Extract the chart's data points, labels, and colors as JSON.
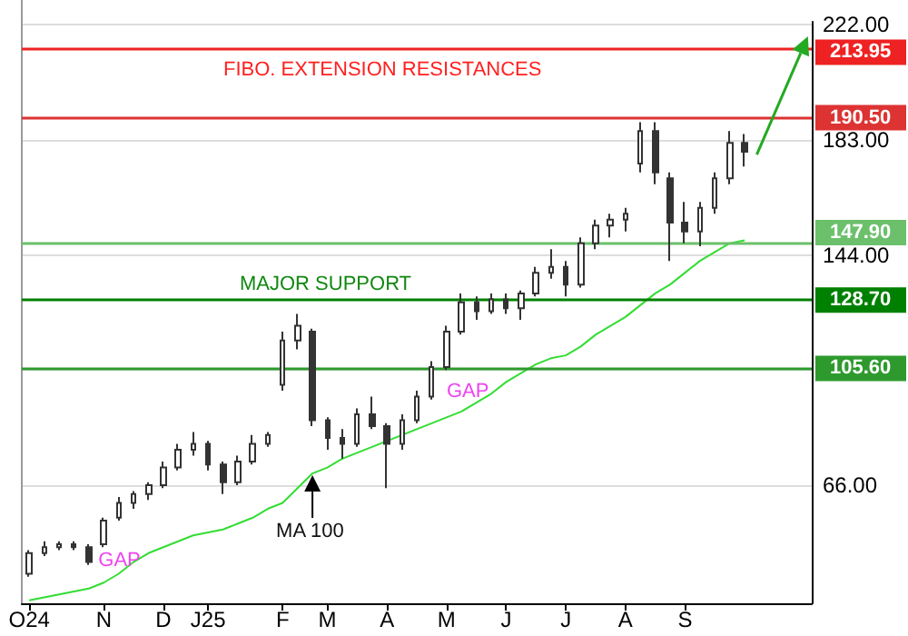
{
  "chart_data": {
    "type": "candlestick",
    "categories": [
      "O24",
      null,
      null,
      null,
      null,
      "N",
      null,
      null,
      null,
      "D",
      null,
      null,
      "J25",
      null,
      null,
      null,
      null,
      "F",
      null,
      null,
      "M",
      null,
      null,
      null,
      "A",
      null,
      null,
      null,
      "M",
      null,
      null,
      null,
      "J",
      null,
      null,
      null,
      "J",
      null,
      null,
      null,
      "A",
      null,
      null,
      null,
      "S",
      null,
      null,
      null,
      null,
      null,
      null,
      null,
      null
    ],
    "series": [
      {
        "color": "#333333",
        "ohlc": [
          [
            36,
            44,
            35,
            43
          ],
          [
            43,
            47,
            42,
            45
          ],
          [
            45,
            47,
            44,
            46
          ],
          [
            46,
            47,
            44,
            45
          ],
          [
            45,
            46,
            39,
            40
          ],
          [
            46,
            55,
            45,
            54
          ],
          [
            55,
            62,
            54,
            60
          ],
          [
            60,
            64,
            58,
            63
          ],
          [
            63,
            67,
            61,
            66
          ],
          [
            66,
            74,
            65,
            72
          ],
          [
            72,
            80,
            71,
            78
          ],
          [
            78,
            84,
            76,
            80
          ],
          [
            80,
            81,
            71,
            73
          ],
          [
            73,
            74,
            63,
            67
          ],
          [
            67,
            76,
            66,
            74
          ],
          [
            74,
            83,
            73,
            80
          ],
          [
            80,
            84,
            79,
            83
          ],
          [
            100,
            118,
            98,
            115
          ],
          [
            115,
            124,
            112,
            120
          ],
          [
            118,
            119,
            86,
            88
          ],
          [
            88,
            89,
            78,
            82
          ],
          [
            82,
            85,
            75,
            80
          ],
          [
            80,
            92,
            79,
            90
          ],
          [
            90,
            96,
            85,
            86
          ],
          [
            86,
            87,
            65,
            80
          ],
          [
            80,
            90,
            78,
            88
          ],
          [
            88,
            98,
            87,
            96
          ],
          [
            96,
            108,
            95,
            106
          ],
          [
            106,
            120,
            105,
            118
          ],
          [
            118,
            131,
            117,
            128
          ],
          [
            128,
            130,
            122,
            125
          ],
          [
            125,
            131,
            124,
            129
          ],
          [
            129,
            131,
            124,
            126
          ],
          [
            126,
            132,
            122,
            131
          ],
          [
            131,
            140,
            130,
            138
          ],
          [
            138,
            146,
            136,
            140
          ],
          [
            140,
            142,
            130,
            134
          ],
          [
            134,
            150,
            133,
            148
          ],
          [
            148,
            156,
            146,
            154
          ],
          [
            154,
            158,
            150,
            156
          ],
          [
            156,
            160,
            152,
            158
          ],
          [
            175,
            189,
            172,
            186
          ],
          [
            186,
            189,
            168,
            172
          ],
          [
            170,
            172,
            142,
            155
          ],
          [
            155,
            162,
            148,
            152
          ],
          [
            152,
            162,
            147,
            160
          ],
          [
            160,
            172,
            158,
            170
          ],
          [
            170,
            186,
            168,
            182
          ],
          [
            182,
            185,
            174,
            179
          ],
          null,
          null,
          null,
          null
        ]
      },
      {
        "type": "line",
        "color": "#33dd33",
        "values": [
          27,
          28,
          29,
          30,
          31,
          33,
          36,
          40,
          43,
          45,
          47,
          49,
          50,
          51,
          53,
          55,
          58,
          60,
          65,
          70,
          72,
          75,
          77,
          79,
          81,
          83,
          85,
          87,
          89,
          91,
          94,
          97,
          101,
          104,
          107,
          109,
          110,
          113,
          117,
          120,
          123,
          127,
          131,
          134,
          138,
          142,
          145,
          148,
          149,
          null,
          null,
          null,
          null
        ]
      }
    ],
    "ylim": [
      26,
      223
    ],
    "yticks": [
      {
        "value": 66,
        "label": "66.00"
      },
      {
        "value": 105,
        "label": null
      },
      {
        "value": 144,
        "label": "144.00"
      },
      {
        "value": 183,
        "label": "183.00"
      },
      {
        "value": 222,
        "label": "222.00"
      }
    ],
    "grid": "y",
    "ref_lines": [
      {
        "axis": "y",
        "value": 213.95,
        "label": "213.95",
        "color": "#ee2222"
      },
      {
        "axis": "y",
        "value": 190.5,
        "label": "190.50",
        "color": "#dd3333"
      },
      {
        "axis": "y",
        "value": 147.9,
        "label": "147.90",
        "color": "#6cc06c"
      },
      {
        "axis": "y",
        "value": 128.7,
        "label": "128.70",
        "color": "#008000"
      },
      {
        "axis": "y",
        "value": 105.6,
        "label": "105.60",
        "color": "#2e9a2e"
      }
    ],
    "annotations": [
      "FIBO. EXTENSION RESISTANCES",
      "MAJOR SUPPORT",
      "GAP",
      "GAP",
      "MA 100"
    ]
  }
}
